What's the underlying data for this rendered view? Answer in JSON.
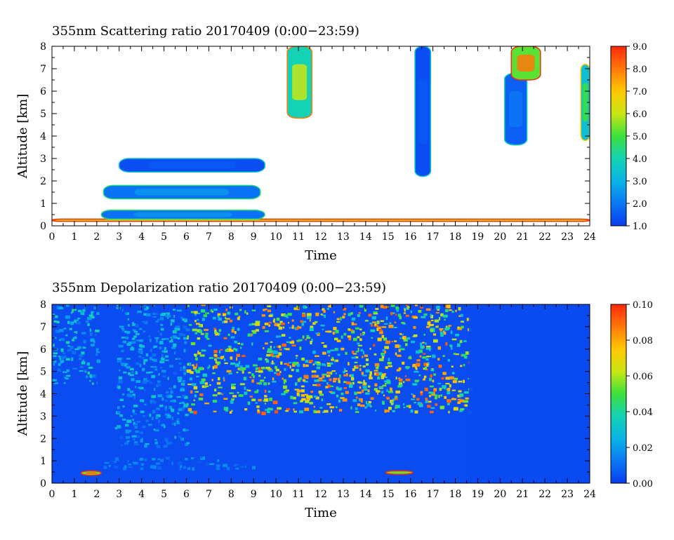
{
  "chart_data": [
    {
      "type": "heatmap",
      "title": "355nm Scattering ratio  20170409 (0:00−23:59)",
      "xlabel": "Time",
      "ylabel": "Altitude [km]",
      "xlim": [
        0,
        24
      ],
      "ylim": [
        0,
        8
      ],
      "x_ticks": [
        "0",
        "1",
        "2",
        "3",
        "4",
        "5",
        "6",
        "7",
        "8",
        "9",
        "10",
        "11",
        "12",
        "13",
        "14",
        "15",
        "16",
        "17",
        "18",
        "19",
        "20",
        "21",
        "22",
        "23",
        "24"
      ],
      "y_ticks": [
        "0",
        "1",
        "2",
        "3",
        "4",
        "5",
        "6",
        "7",
        "8"
      ],
      "colorbar": {
        "range": [
          1.0,
          9.0
        ],
        "ticks": [
          "1.0",
          "2.0",
          "3.0",
          "4.0",
          "5.0",
          "6.0",
          "7.0",
          "8.0",
          "9.0"
        ]
      },
      "features": [
        {
          "desc": "surface layer",
          "time": [
            0,
            24
          ],
          "alt": [
            0.2,
            0.3
          ],
          "value": 9.0
        },
        {
          "desc": "boundary layer aerosol",
          "time": [
            2.2,
            9.5
          ],
          "alt": [
            0.3,
            0.7
          ],
          "value": 2.5
        },
        {
          "desc": "aerosol layer",
          "time": [
            2.3,
            9.3
          ],
          "alt": [
            1.2,
            1.8
          ],
          "value": 2.5
        },
        {
          "desc": "aerosol layer",
          "time": [
            3.0,
            9.5
          ],
          "alt": [
            2.4,
            3.0
          ],
          "value": 1.5
        },
        {
          "desc": "cloud",
          "time": [
            10.5,
            11.6
          ],
          "alt": [
            4.8,
            8.0
          ],
          "value": 6.0
        },
        {
          "desc": "cloud",
          "time": [
            16.2,
            16.9
          ],
          "alt": [
            2.2,
            8.0
          ],
          "value": 1.5
        },
        {
          "desc": "cloud",
          "time": [
            20.2,
            21.2
          ],
          "alt": [
            3.6,
            6.8
          ],
          "value": 2.0
        },
        {
          "desc": "cloud",
          "time": [
            20.5,
            21.8
          ],
          "alt": [
            6.5,
            8.0
          ],
          "value": 8.0
        },
        {
          "desc": "cloud",
          "time": [
            23.6,
            24.0
          ],
          "alt": [
            3.8,
            7.2
          ],
          "value": 5.0
        }
      ]
    },
    {
      "type": "heatmap",
      "title": "355nm Depolarization ratio  20170409 (0:00−23:59)",
      "xlabel": "Time",
      "ylabel": "Altitude [km]",
      "xlim": [
        0,
        24
      ],
      "ylim": [
        0,
        8
      ],
      "x_ticks": [
        "0",
        "1",
        "2",
        "3",
        "4",
        "5",
        "6",
        "7",
        "8",
        "9",
        "10",
        "11",
        "12",
        "13",
        "14",
        "15",
        "16",
        "17",
        "18",
        "19",
        "20",
        "21",
        "22",
        "23",
        "24"
      ],
      "y_ticks": [
        "0",
        "1",
        "2",
        "3",
        "4",
        "5",
        "6",
        "7",
        "8"
      ],
      "colorbar": {
        "range": [
          0.0,
          0.1
        ],
        "ticks": [
          "0.00",
          "0.02",
          "0.04",
          "0.06",
          "0.08",
          "0.10"
        ]
      },
      "features": [
        {
          "desc": "noisy upper region",
          "time": [
            6.0,
            18.6
          ],
          "alt": [
            3.2,
            8.0
          ],
          "value": 0.07
        },
        {
          "desc": "noisy region",
          "time": [
            2.8,
            6.0
          ],
          "alt": [
            2.5,
            8.0
          ],
          "value": 0.025
        },
        {
          "desc": "noisy region",
          "time": [
            0.0,
            2.0
          ],
          "alt": [
            4.5,
            8.0
          ],
          "value": 0.03
        },
        {
          "desc": "aerosol layer",
          "time": [
            3.0,
            6.0
          ],
          "alt": [
            1.7,
            2.5
          ],
          "value": 0.02
        },
        {
          "desc": "aerosol layer",
          "time": [
            2.3,
            9.0
          ],
          "alt": [
            0.7,
            1.2
          ],
          "value": 0.015
        },
        {
          "desc": "clear region",
          "time": [
            18.6,
            24.0
          ],
          "alt": [
            0.0,
            8.0
          ],
          "value": 0.003
        },
        {
          "desc": "spot",
          "time": [
            1.3,
            2.2
          ],
          "alt": [
            0.35,
            0.55
          ],
          "value": 0.09
        },
        {
          "desc": "spot",
          "time": [
            14.9,
            16.1
          ],
          "alt": [
            0.4,
            0.55
          ],
          "value": 0.09
        }
      ]
    }
  ]
}
